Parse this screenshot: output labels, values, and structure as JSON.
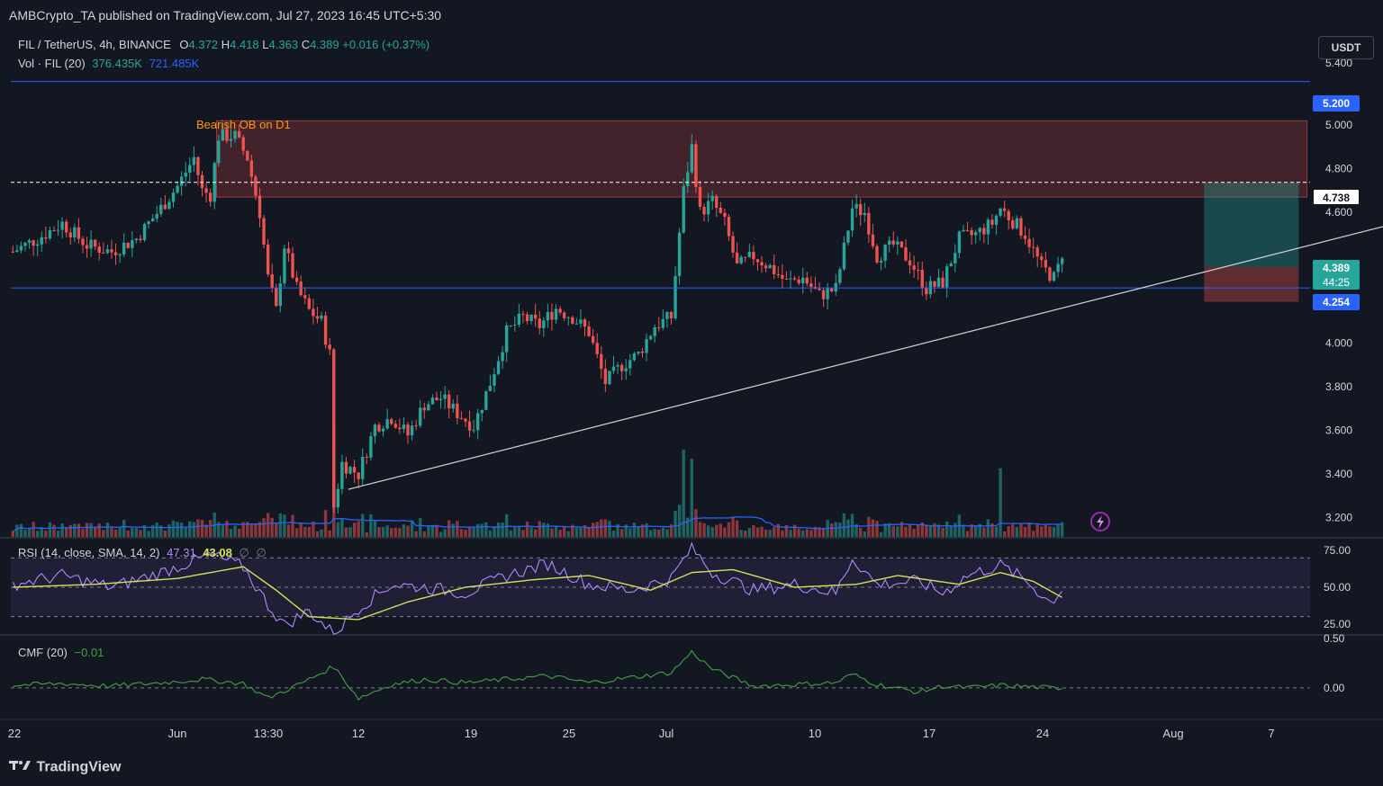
{
  "publisher_line": "AMBCrypto_TA published on TradingView.com, Jul 27, 2023 16:45 UTC+5:30",
  "symbol": {
    "name": "FIL / TetherUS, 4h, BINANCE",
    "open_label": "O",
    "open": "4.372",
    "high_label": "H",
    "high": "4.418",
    "low_label": "L",
    "low": "4.363",
    "close_label": "C",
    "close": "4.389",
    "change": "+0.016 (+0.37%)"
  },
  "volume_legend": {
    "label": "Vol · FIL (20)",
    "value1": "376.435K",
    "value2": "721.485K"
  },
  "currency_button": "USDT",
  "annotation": "Bearish OB on D1",
  "price_badges": {
    "resistance": "5.200",
    "dashed_level": "4.738",
    "current_price": "4.389",
    "countdown": "44:25",
    "support": "4.254"
  },
  "rsi_legend": {
    "label": "RSI (14, close, SMA, 14, 2)",
    "value1": "47.31",
    "value2": "43.08",
    "value3": "∅",
    "value4": "∅"
  },
  "cmf_legend": {
    "label": "CMF (20)",
    "value": "−0.01"
  },
  "logo_text": "TradingView",
  "icons": {
    "lightning": "lightning-icon",
    "logo": "tradingview-logo-icon"
  },
  "colors": {
    "background": "#131722",
    "up": "#26a69a",
    "down": "#ef5350",
    "level_line": "#2962ff",
    "rsi": "#b388ff",
    "rsi_ma": "#d4e157",
    "cmf": "#43a047",
    "annotation": "#ff9800",
    "volume_ma": "#2962ff"
  },
  "chart_data": {
    "type": "candlestick",
    "timeframe": "4h",
    "x_tick_labels": [
      "22",
      "Jun",
      "13:30",
      "12",
      "19",
      "25",
      "Jul",
      "10",
      "17",
      "24",
      "Aug",
      "7"
    ],
    "y_tick_labels": [
      "5.400",
      "5.000",
      "4.800",
      "4.600",
      "4.000",
      "3.800",
      "3.600",
      "3.400",
      "3.200"
    ],
    "ylim": [
      3.1,
      5.45
    ],
    "close_path": [
      [
        0,
        4.42
      ],
      [
        6,
        4.48
      ],
      [
        12,
        4.55
      ],
      [
        18,
        4.45
      ],
      [
        24,
        4.42
      ],
      [
        30,
        4.48
      ],
      [
        36,
        4.62
      ],
      [
        40,
        4.72
      ],
      [
        44,
        4.85
      ],
      [
        46,
        4.7
      ],
      [
        48,
        4.68
      ],
      [
        50,
        4.95
      ],
      [
        54,
        4.95
      ],
      [
        57,
        4.85
      ],
      [
        60,
        4.6
      ],
      [
        62,
        4.3
      ],
      [
        64,
        4.15
      ],
      [
        66,
        4.45
      ],
      [
        69,
        4.25
      ],
      [
        72,
        4.15
      ],
      [
        75,
        4.1
      ],
      [
        77,
        3.95
      ],
      [
        78,
        3.25
      ],
      [
        80,
        3.45
      ],
      [
        84,
        3.4
      ],
      [
        88,
        3.62
      ],
      [
        92,
        3.66
      ],
      [
        96,
        3.58
      ],
      [
        100,
        3.72
      ],
      [
        104,
        3.75
      ],
      [
        108,
        3.68
      ],
      [
        112,
        3.62
      ],
      [
        116,
        3.82
      ],
      [
        120,
        4.05
      ],
      [
        124,
        4.12
      ],
      [
        128,
        4.08
      ],
      [
        132,
        4.16
      ],
      [
        136,
        4.12
      ],
      [
        140,
        4.05
      ],
      [
        144,
        3.82
      ],
      [
        148,
        3.9
      ],
      [
        152,
        3.95
      ],
      [
        156,
        4.08
      ],
      [
        160,
        4.12
      ],
      [
        163,
        4.7
      ],
      [
        165,
        4.9
      ],
      [
        167,
        4.6
      ],
      [
        170,
        4.65
      ],
      [
        173,
        4.55
      ],
      [
        176,
        4.35
      ],
      [
        180,
        4.4
      ],
      [
        184,
        4.35
      ],
      [
        188,
        4.28
      ],
      [
        192,
        4.3
      ],
      [
        196,
        4.22
      ],
      [
        200,
        4.25
      ],
      [
        204,
        4.62
      ],
      [
        207,
        4.6
      ],
      [
        210,
        4.4
      ],
      [
        214,
        4.45
      ],
      [
        218,
        4.38
      ],
      [
        222,
        4.25
      ],
      [
        226,
        4.28
      ],
      [
        230,
        4.48
      ],
      [
        234,
        4.5
      ],
      [
        238,
        4.55
      ],
      [
        240,
        4.62
      ],
      [
        242,
        4.58
      ],
      [
        246,
        4.5
      ],
      [
        250,
        4.35
      ],
      [
        253,
        4.3
      ],
      [
        255,
        4.389
      ]
    ],
    "total_bars": 255,
    "levels": [
      {
        "price": 5.2,
        "style": "solid"
      },
      {
        "price": 4.738,
        "style": "dashed"
      },
      {
        "price": 4.254,
        "style": "solid"
      }
    ],
    "order_block": {
      "price_top": 5.02,
      "price_bottom": 4.67,
      "bar_start": 50,
      "bar_end": 315
    },
    "trendline": {
      "bar_start": 82,
      "price_start": 3.33,
      "bar_end": 345,
      "price_end": 4.59
    },
    "position": {
      "bar_start": 290,
      "bar_end": 313,
      "entry": 4.35,
      "target": 4.738,
      "stop": 4.19
    },
    "rsi": {
      "y_tick_labels": [
        "75.00",
        "50.00",
        "25.00"
      ],
      "ylim": [
        20,
        80
      ],
      "band": [
        70,
        30
      ],
      "path": [
        [
          0,
          52
        ],
        [
          12,
          58
        ],
        [
          24,
          50
        ],
        [
          36,
          60
        ],
        [
          48,
          72
        ],
        [
          56,
          64
        ],
        [
          62,
          38
        ],
        [
          66,
          24
        ],
        [
          72,
          34
        ],
        [
          78,
          18
        ],
        [
          84,
          36
        ],
        [
          92,
          52
        ],
        [
          100,
          50
        ],
        [
          110,
          46
        ],
        [
          120,
          58
        ],
        [
          130,
          66
        ],
        [
          140,
          52
        ],
        [
          150,
          48
        ],
        [
          160,
          56
        ],
        [
          165,
          77
        ],
        [
          170,
          60
        ],
        [
          180,
          48
        ],
        [
          190,
          52
        ],
        [
          200,
          46
        ],
        [
          204,
          70
        ],
        [
          210,
          52
        ],
        [
          220,
          54
        ],
        [
          226,
          46
        ],
        [
          232,
          58
        ],
        [
          240,
          65
        ],
        [
          246,
          55
        ],
        [
          252,
          40
        ],
        [
          255,
          47.31
        ]
      ],
      "ma_path": [
        [
          0,
          50
        ],
        [
          20,
          52
        ],
        [
          40,
          56
        ],
        [
          56,
          64
        ],
        [
          64,
          48
        ],
        [
          72,
          30
        ],
        [
          84,
          28
        ],
        [
          96,
          40
        ],
        [
          110,
          50
        ],
        [
          126,
          55
        ],
        [
          140,
          58
        ],
        [
          155,
          48
        ],
        [
          165,
          60
        ],
        [
          175,
          62
        ],
        [
          190,
          50
        ],
        [
          205,
          52
        ],
        [
          215,
          58
        ],
        [
          230,
          52
        ],
        [
          240,
          60
        ],
        [
          248,
          54
        ],
        [
          255,
          43.08
        ]
      ]
    },
    "cmf": {
      "y_tick_labels": [
        "0.50",
        "0.00"
      ],
      "ylim": [
        -0.35,
        0.6
      ],
      "path": [
        [
          0,
          0.03
        ],
        [
          12,
          0.05
        ],
        [
          24,
          0.02
        ],
        [
          36,
          0.06
        ],
        [
          46,
          0.1
        ],
        [
          56,
          0.05
        ],
        [
          62,
          -0.12
        ],
        [
          70,
          0.05
        ],
        [
          78,
          0.25
        ],
        [
          84,
          -0.12
        ],
        [
          92,
          0.04
        ],
        [
          100,
          0.1
        ],
        [
          110,
          0.06
        ],
        [
          120,
          0.1
        ],
        [
          130,
          0.14
        ],
        [
          140,
          0.06
        ],
        [
          150,
          0.12
        ],
        [
          160,
          0.18
        ],
        [
          165,
          0.42
        ],
        [
          170,
          0.22
        ],
        [
          180,
          0.02
        ],
        [
          190,
          0.04
        ],
        [
          200,
          0.06
        ],
        [
          204,
          0.16
        ],
        [
          210,
          0.04
        ],
        [
          220,
          -0.05
        ],
        [
          226,
          0.02
        ],
        [
          232,
          0.0
        ],
        [
          240,
          0.03
        ],
        [
          248,
          0.01
        ],
        [
          255,
          -0.01
        ]
      ]
    }
  }
}
